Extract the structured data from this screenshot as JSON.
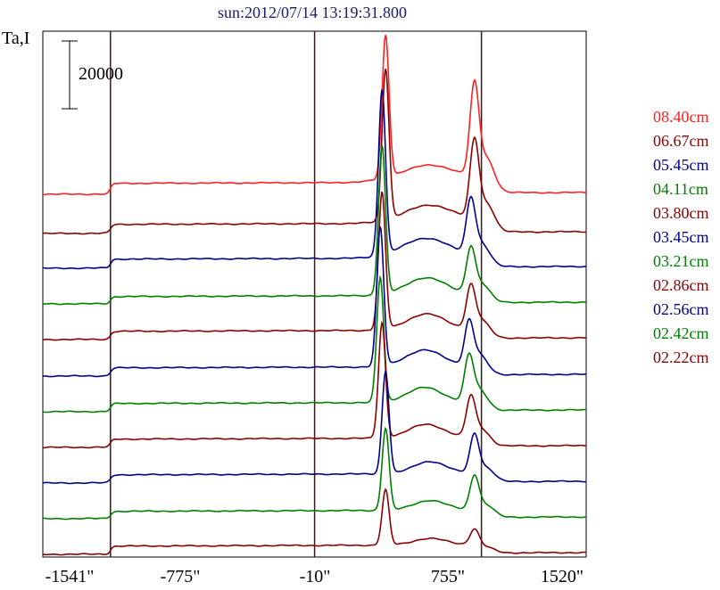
{
  "chart_data": {
    "type": "line",
    "title": "sun:2012/07/14 13:19:31.800",
    "ylabel": "Ta,I",
    "scale_bar_label": "20000",
    "xlim": [
      -1541,
      1520
    ],
    "x_ticks": [
      "-1541\"",
      "-775\"",
      "-10\"",
      "755\"",
      "1520\""
    ],
    "vertical_lines_x": [
      -1160,
      -10,
      930
    ],
    "series": [
      {
        "name": "08.40cm",
        "color": "#ff2020",
        "baseline": 218,
        "peak_x": 390,
        "peak_h": 160,
        "sec_h": 100,
        "plat_h": 12,
        "sec_w": 45
      },
      {
        "name": "06.67cm",
        "color": "#8b0000",
        "baseline": 262,
        "peak_x": 390,
        "peak_h": 170,
        "sec_h": 85,
        "plat_h": 10,
        "sec_w": 40
      },
      {
        "name": "05.45cm",
        "color": "#00008b",
        "baseline": 301,
        "peak_x": 370,
        "peak_h": 186,
        "sec_h": 60,
        "plat_h": 10,
        "sec_w": 38
      },
      {
        "name": "04.11cm",
        "color": "#008000",
        "baseline": 341,
        "peak_x": 370,
        "peak_h": 167,
        "sec_h": 50,
        "plat_h": 8,
        "sec_w": 32
      },
      {
        "name": "03.80cm",
        "color": "#8b0000",
        "baseline": 381,
        "peak_x": 370,
        "peak_h": 154,
        "sec_h": 47,
        "plat_h": 9,
        "sec_w": 30
      },
      {
        "name": "03.45cm",
        "color": "#00008b",
        "baseline": 422,
        "peak_x": 360,
        "peak_h": 156,
        "sec_h": 48,
        "plat_h": 9,
        "sec_w": 30
      },
      {
        "name": "03.21cm",
        "color": "#008000",
        "baseline": 462,
        "peak_x": 360,
        "peak_h": 140,
        "sec_h": 50,
        "plat_h": 9,
        "sec_w": 28
      },
      {
        "name": "02.86cm",
        "color": "#8b0000",
        "baseline": 502,
        "peak_x": 370,
        "peak_h": 129,
        "sec_h": 44,
        "plat_h": 9,
        "sec_w": 28
      },
      {
        "name": "02.56cm",
        "color": "#00008b",
        "baseline": 542,
        "peak_x": 390,
        "peak_h": 115,
        "sec_h": 42,
        "plat_h": 9,
        "sec_w": 26
      },
      {
        "name": "02.42cm",
        "color": "#008000",
        "baseline": 582,
        "peak_x": 390,
        "peak_h": 92,
        "sec_h": 37,
        "plat_h": 8,
        "sec_w": 26
      },
      {
        "name": "02.22cm",
        "color": "#8b0000",
        "baseline": 622,
        "peak_x": 390,
        "peak_h": 62,
        "sec_h": 17,
        "plat_h": 9,
        "sec_w": 26
      }
    ]
  }
}
